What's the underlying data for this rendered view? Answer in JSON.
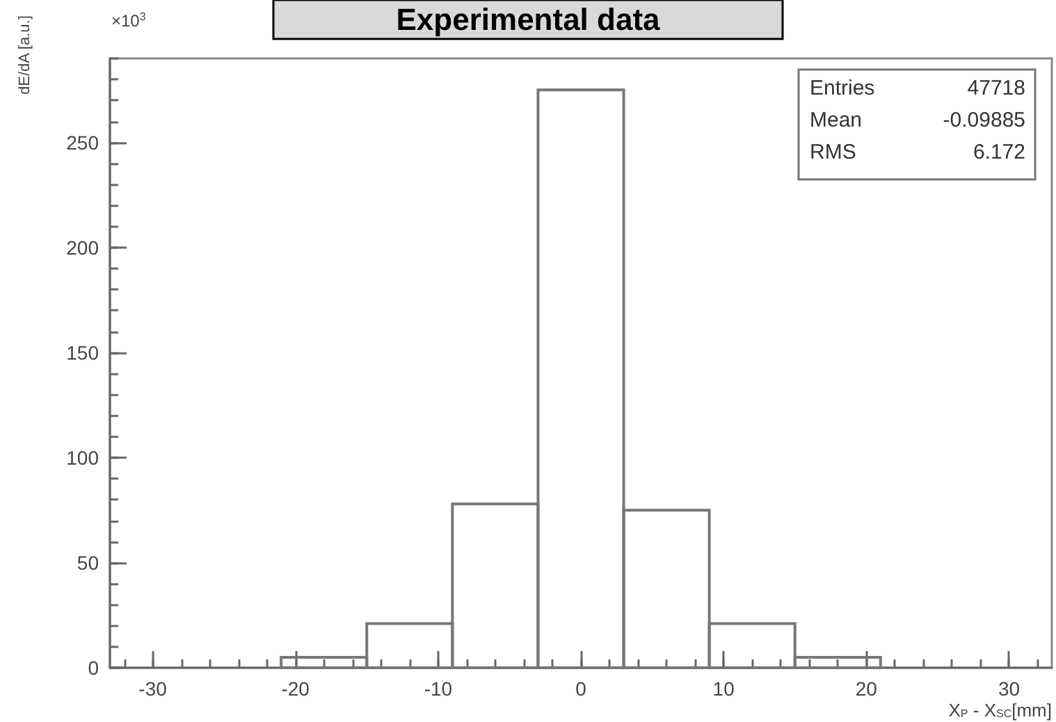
{
  "chart_data": {
    "type": "histogram",
    "title": "Experimental data",
    "xlabel": "X$_{P}$ - X$_{SC}$[mm]",
    "ylabel": "dE/dA [a.u.]",
    "bins": [
      -21,
      -15,
      -9,
      -3,
      3,
      9,
      15,
      21
    ],
    "values": [
      5,
      21,
      78,
      275,
      75,
      21,
      5
    ],
    "color": "#777777",
    "xlim": [
      -33,
      33
    ],
    "xticks": [
      -30,
      -20,
      -10,
      0,
      10,
      20,
      30
    ],
    "ylim": [
      0,
      290
    ],
    "yticks": [
      0,
      50,
      100,
      150,
      200,
      250
    ],
    "annotations": [
      "×10$^{3}$",
      "Entries",
      "47718",
      "Mean",
      "-0.09885",
      "RMS",
      "6.172"
    ],
    "grid": false
  }
}
